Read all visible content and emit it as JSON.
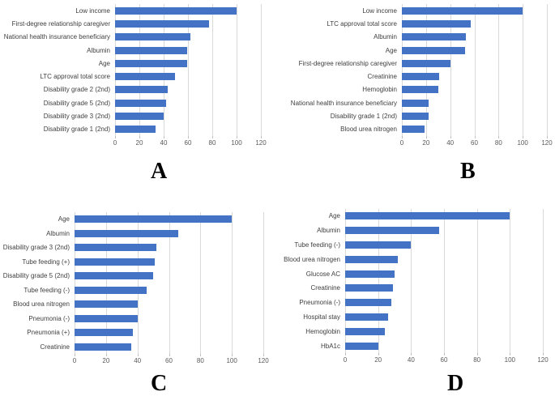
{
  "colors": {
    "bar_fill": "#4472C4",
    "gridline": "#D9D9D9",
    "tick_mark": "#BFBFBF",
    "tick_text": "#595959",
    "category_text": "#3F3F3F",
    "panel_letter": "#000000",
    "background": "#FFFFFF"
  },
  "chart_data": [
    {
      "type": "bar",
      "orientation": "horizontal",
      "panel_label": "A",
      "title": "",
      "xlabel": "",
      "ylabel": "",
      "xlim": [
        0,
        120
      ],
      "xticks": [
        0,
        20,
        40,
        60,
        80,
        100,
        120
      ],
      "grid": true,
      "legend": false,
      "categories": [
        "Low income",
        "First-degree relationship caregiver",
        "National health insurance beneficiary",
        "Albumin",
        "Age",
        "LTC approval total score",
        "Disability grade 2 (2nd)",
        "Disability grade 5 (2nd)",
        "Disability grade 3 (2nd)",
        "Disability grade 1 (2nd)"
      ],
      "values": [
        100,
        77,
        62,
        59,
        59,
        49,
        43,
        42,
        40,
        33
      ]
    },
    {
      "type": "bar",
      "orientation": "horizontal",
      "panel_label": "B",
      "title": "",
      "xlabel": "",
      "ylabel": "",
      "xlim": [
        0,
        120
      ],
      "xticks": [
        0,
        20,
        40,
        60,
        80,
        100,
        120
      ],
      "grid": true,
      "legend": false,
      "categories": [
        "Low income",
        "LTC approval total score",
        "Albumin",
        "Age",
        "First-degree relationship caregiver",
        "Creatinine",
        "Hemoglobin",
        "National health insurance beneficiary",
        "Disability grade 1 (2nd)",
        "Blood urea nitrogen"
      ],
      "values": [
        100,
        57,
        53,
        52,
        40,
        31,
        30,
        22,
        22,
        19
      ]
    },
    {
      "type": "bar",
      "orientation": "horizontal",
      "panel_label": "C",
      "title": "",
      "xlabel": "",
      "ylabel": "",
      "xlim": [
        0,
        120
      ],
      "xticks": [
        0,
        20,
        40,
        60,
        80,
        100,
        120
      ],
      "grid": true,
      "legend": false,
      "categories": [
        "Age",
        "Albumin",
        "Disability grade 3 (2nd)",
        "Tube feeding (+)",
        "Disability grade 5 (2nd)",
        "Tube feeding (-)",
        "Blood urea nitrogen",
        "Pneumonia (-)",
        "Pneumonia (+)",
        "Creatinine"
      ],
      "values": [
        100,
        66,
        52,
        51,
        50,
        46,
        40,
        40,
        37,
        36
      ]
    },
    {
      "type": "bar",
      "orientation": "horizontal",
      "panel_label": "D",
      "title": "",
      "xlabel": "",
      "ylabel": "",
      "xlim": [
        0,
        120
      ],
      "xticks": [
        0,
        20,
        40,
        60,
        80,
        100,
        120
      ],
      "grid": true,
      "legend": false,
      "categories": [
        "Age",
        "Albumin",
        "Tube feeding (-)",
        "Blood urea nitrogen",
        "Glucose AC",
        "Creatinine",
        "Pneumonia (-)",
        "Hospital stay",
        "Hemoglobin",
        "HbA1c"
      ],
      "values": [
        100,
        57,
        40,
        32,
        30,
        29,
        28,
        26,
        24,
        20
      ]
    }
  ]
}
